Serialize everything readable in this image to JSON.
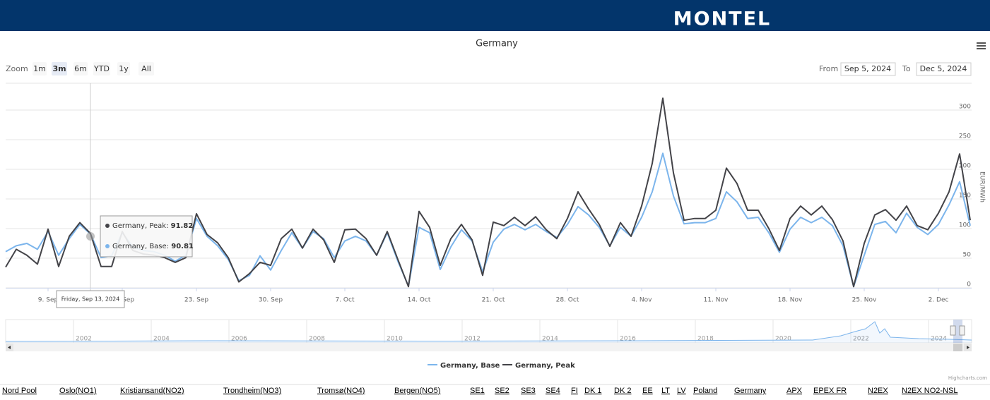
{
  "header": {
    "logo": "MONTEL"
  },
  "zoom": {
    "label": "Zoom",
    "buttons": [
      "1m",
      "3m",
      "6m",
      "YTD",
      "1y",
      "All"
    ],
    "selected": 1
  },
  "range": {
    "from_label": "From",
    "from": "Sep 5, 2024",
    "to_label": "To",
    "to": "Dec 5, 2024"
  },
  "chart_data": {
    "type": "line",
    "title": "Germany",
    "y_label": "EUR/MWh",
    "x": [
      "2024-09-05",
      "2024-09-06",
      "2024-09-07",
      "2024-09-08",
      "2024-09-09",
      "2024-09-10",
      "2024-09-11",
      "2024-09-12",
      "2024-09-13",
      "2024-09-14",
      "2024-09-15",
      "2024-09-16",
      "2024-09-17",
      "2024-09-18",
      "2024-09-19",
      "2024-09-20",
      "2024-09-21",
      "2024-09-22",
      "2024-09-23",
      "2024-09-24",
      "2024-09-25",
      "2024-09-26",
      "2024-09-27",
      "2024-09-28",
      "2024-09-29",
      "2024-09-30",
      "2024-10-01",
      "2024-10-02",
      "2024-10-03",
      "2024-10-04",
      "2024-10-05",
      "2024-10-06",
      "2024-10-07",
      "2024-10-08",
      "2024-10-09",
      "2024-10-10",
      "2024-10-11",
      "2024-10-12",
      "2024-10-13",
      "2024-10-14",
      "2024-10-15",
      "2024-10-16",
      "2024-10-17",
      "2024-10-18",
      "2024-10-19",
      "2024-10-20",
      "2024-10-21",
      "2024-10-22",
      "2024-10-23",
      "2024-10-24",
      "2024-10-25",
      "2024-10-26",
      "2024-10-27",
      "2024-10-28",
      "2024-10-29",
      "2024-10-30",
      "2024-10-31",
      "2024-11-01",
      "2024-11-02",
      "2024-11-03",
      "2024-11-04",
      "2024-11-05",
      "2024-11-06",
      "2024-11-07",
      "2024-11-08",
      "2024-11-09",
      "2024-11-10",
      "2024-11-11",
      "2024-11-12",
      "2024-11-13",
      "2024-11-14",
      "2024-11-15",
      "2024-11-16",
      "2024-11-17",
      "2024-11-18",
      "2024-11-19",
      "2024-11-20",
      "2024-11-21",
      "2024-11-22",
      "2024-11-23",
      "2024-11-24",
      "2024-11-25",
      "2024-11-26",
      "2024-11-27",
      "2024-11-28",
      "2024-11-29",
      "2024-11-30",
      "2024-12-01",
      "2024-12-02",
      "2024-12-03",
      "2024-12-04",
      "2024-12-05"
    ],
    "series": [
      {
        "name": "Germany, Base",
        "color": "#7cb5ec",
        "values": [
          61,
          71,
          75,
          65,
          95,
          55,
          83,
          107,
          90.81,
          51,
          54,
          93,
          69,
          63,
          61,
          55,
          45,
          55,
          117,
          87,
          71,
          48,
          12,
          21,
          54,
          30,
          63,
          93,
          67,
          95,
          83,
          51,
          79,
          87,
          79,
          55,
          93,
          45,
          3,
          102,
          93,
          31,
          69,
          98,
          79,
          27,
          77,
          99,
          107,
          98,
          107,
          95,
          85,
          107,
          137,
          123,
          102,
          71,
          102,
          87,
          119,
          162,
          227,
          155,
          108,
          110,
          110,
          117,
          162,
          145,
          117,
          119,
          93,
          60,
          99,
          119,
          110,
          119,
          105,
          71,
          2,
          55,
          107,
          112,
          93,
          126,
          102,
          90,
          107,
          140,
          179,
          105
        ]
      },
      {
        "name": "Germany, Peak",
        "color": "#434348",
        "values": [
          35,
          65,
          55,
          40,
          99,
          36,
          87,
          110,
          91.82,
          36,
          36,
          95,
          63,
          57,
          55,
          51,
          43,
          51,
          125,
          90,
          76,
          51,
          10,
          24,
          43,
          38,
          83,
          99,
          67,
          99,
          81,
          43,
          98,
          99,
          83,
          55,
          95,
          48,
          2,
          129,
          102,
          38,
          83,
          107,
          81,
          21,
          111,
          105,
          119,
          105,
          120,
          98,
          83,
          117,
          162,
          133,
          107,
          70,
          110,
          87,
          138,
          210,
          320,
          194,
          114,
          117,
          117,
          131,
          202,
          176,
          131,
          131,
          100,
          63,
          117,
          138,
          123,
          138,
          115,
          79,
          2,
          75,
          123,
          132,
          114,
          138,
          105,
          98,
          126,
          162,
          226,
          114
        ]
      }
    ],
    "xlim": [
      "2024-09-05",
      "2024-12-05"
    ],
    "xticks": [
      {
        "value": "2024-09-09",
        "label": "9. Sep"
      },
      {
        "value": "2024-09-16",
        "label": "16. Sep"
      },
      {
        "value": "2024-09-23",
        "label": "23. Sep"
      },
      {
        "value": "2024-09-30",
        "label": "30. Sep"
      },
      {
        "value": "2024-10-07",
        "label": "7. Oct"
      },
      {
        "value": "2024-10-14",
        "label": "14. Oct"
      },
      {
        "value": "2024-10-21",
        "label": "21. Oct"
      },
      {
        "value": "2024-10-28",
        "label": "28. Oct"
      },
      {
        "value": "2024-11-04",
        "label": "4. Nov"
      },
      {
        "value": "2024-11-11",
        "label": "11. Nov"
      },
      {
        "value": "2024-11-18",
        "label": "18. Nov"
      },
      {
        "value": "2024-11-25",
        "label": "25. Nov"
      },
      {
        "value": "2024-12-02",
        "label": "2. Dec"
      }
    ],
    "ylim": [
      0,
      350
    ],
    "yticks": [
      0,
      50,
      100,
      150,
      200,
      250,
      300
    ],
    "grid": true,
    "tooltip": {
      "header": "Friday, Sep 13, 2024",
      "labels": [
        "Germany, Peak:",
        "Germany, Base:"
      ]
    }
  },
  "navigator": {
    "years": [
      "2002",
      "2004",
      "2006",
      "2008",
      "2010",
      "2012",
      "2014",
      "2016",
      "2018",
      "2020",
      "2022",
      "2024"
    ]
  },
  "credit": "Highcharts.com",
  "links": [
    "Nord Pool",
    "Oslo(NO1)",
    "Kristiansand(NO2)",
    "Trondheim(NO3)",
    "Tromsø(NO4)",
    "Bergen(NO5)",
    "SE1",
    "SE2",
    "SE3",
    "SE4",
    "FI",
    "DK 1",
    "DK 2",
    "EE",
    "LT",
    "LV",
    "Poland",
    "Germany",
    "APX",
    "EPEX FR",
    "N2EX",
    "N2EX NO2-NSL"
  ]
}
